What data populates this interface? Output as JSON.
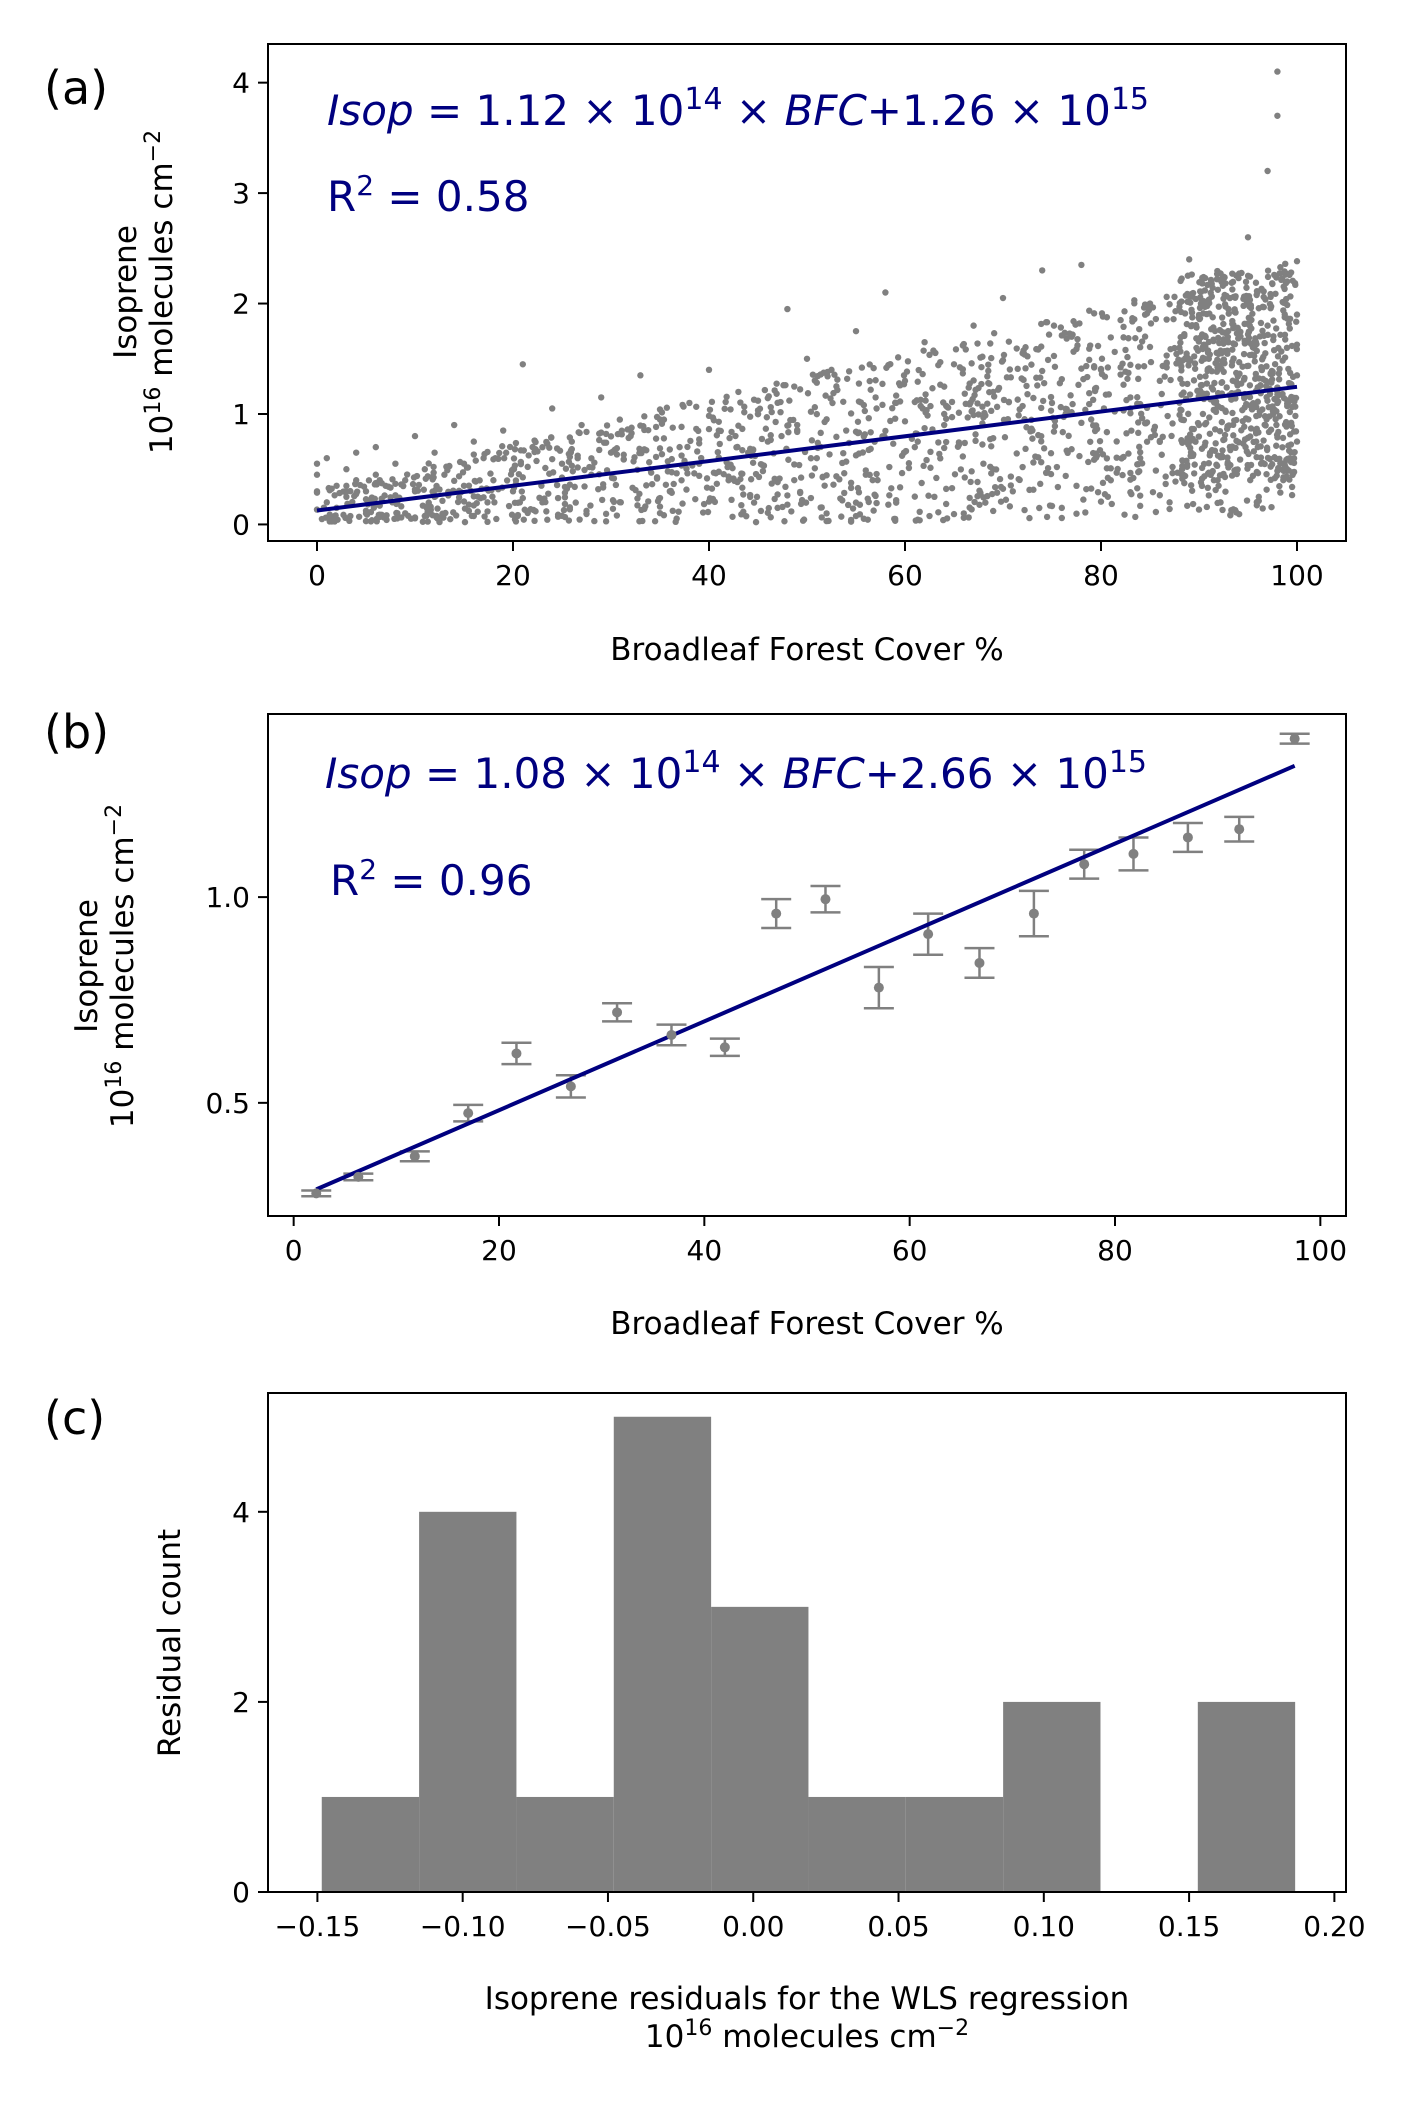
{
  "colors": {
    "points": "#808080",
    "fit_line": "#00007f",
    "bars": "#808080",
    "axes": "#000000"
  },
  "chart_data": [
    {
      "panel": "(a)",
      "type": "scatter",
      "xlabel": "Broadleaf Forest Cover %",
      "ylabel_line1": "Isoprene",
      "ylabel_line2_base": "10",
      "ylabel_line2_exp": "16",
      "ylabel_line2_mid": " molecules cm",
      "ylabel_line2_exp2": "−2",
      "xlim": [
        -5,
        105
      ],
      "ylim": [
        -0.15,
        4.35
      ],
      "xticks": [
        0,
        20,
        40,
        60,
        80,
        100
      ],
      "yticks": [
        0,
        1,
        2,
        3,
        4
      ],
      "equation": {
        "lhs": "Isop",
        "eq": " = 1.12 × 10",
        "exp1": "14",
        "mul": " × ",
        "var": "BFC",
        "plus": "+1.26 × 10",
        "exp2": "15"
      },
      "r2": {
        "label": "R",
        "sup": "2",
        "value": " = 0.58"
      },
      "fit": {
        "slope": 0.0112,
        "intercept": 0.126,
        "x_range": [
          0,
          100
        ]
      },
      "point_cloud_note": "",
      "points": [
        [
          0,
          0.45
        ],
        [
          0,
          0.3
        ],
        [
          0,
          0.55
        ],
        [
          1,
          0.2
        ],
        [
          1,
          0.6
        ],
        [
          2,
          0.35
        ],
        [
          2,
          0.15
        ],
        [
          3,
          0.5
        ],
        [
          3,
          0.25
        ],
        [
          4,
          0.4
        ],
        [
          4,
          0.65
        ],
        [
          5,
          0.3
        ],
        [
          5,
          0.1
        ],
        [
          6,
          0.45
        ],
        [
          6,
          0.7
        ],
        [
          7,
          0.35
        ],
        [
          8,
          0.2
        ],
        [
          8,
          0.55
        ],
        [
          9,
          0.4
        ],
        [
          10,
          0.3
        ],
        [
          10,
          0.8
        ],
        [
          11,
          0.5
        ],
        [
          12,
          0.65
        ],
        [
          12,
          0.25
        ],
        [
          13,
          0.45
        ],
        [
          14,
          0.9
        ],
        [
          15,
          0.55
        ],
        [
          15,
          0.35
        ],
        [
          16,
          0.75
        ],
        [
          17,
          0.6
        ],
        [
          18,
          0.4
        ],
        [
          19,
          0.85
        ],
        [
          20,
          0.5
        ],
        [
          20,
          0.3
        ],
        [
          21,
          1.45
        ],
        [
          22,
          0.7
        ],
        [
          23,
          0.2
        ],
        [
          24,
          1.05
        ],
        [
          25,
          0.55
        ],
        [
          26,
          0.75
        ],
        [
          27,
          0.9
        ],
        [
          28,
          0.45
        ],
        [
          29,
          1.15
        ],
        [
          30,
          0.65
        ],
        [
          31,
          0.2
        ],
        [
          32,
          0.8
        ],
        [
          33,
          1.35
        ],
        [
          34,
          0.5
        ],
        [
          35,
          0.95
        ],
        [
          36,
          0.3
        ],
        [
          37,
          0.7
        ],
        [
          38,
          1.1
        ],
        [
          39,
          0.55
        ],
        [
          40,
          1.4
        ],
        [
          41,
          0.85
        ],
        [
          42,
          0.4
        ],
        [
          43,
          1.2
        ],
        [
          44,
          0.65
        ],
        [
          45,
          1.0
        ],
        [
          46,
          0.75
        ],
        [
          47,
          0.15
        ],
        [
          48,
          1.95
        ],
        [
          49,
          0.9
        ],
        [
          50,
          1.5
        ],
        [
          51,
          0.6
        ],
        [
          52,
          0.1
        ],
        [
          53,
          1.25
        ],
        [
          54,
          0.85
        ],
        [
          55,
          1.75
        ],
        [
          56,
          0.45
        ],
        [
          57,
          1.15
        ],
        [
          58,
          2.1
        ],
        [
          59,
          0.05
        ],
        [
          60,
          1.3
        ],
        [
          61,
          0.7
        ],
        [
          62,
          1.65
        ],
        [
          63,
          0.25
        ],
        [
          64,
          1.0
        ],
        [
          65,
          1.45
        ],
        [
          66,
          0.1
        ],
        [
          67,
          1.8
        ],
        [
          68,
          0.55
        ],
        [
          69,
          1.2
        ],
        [
          70,
          2.05
        ],
        [
          71,
          0.3
        ],
        [
          72,
          1.55
        ],
        [
          73,
          0.85
        ],
        [
          74,
          2.3
        ],
        [
          75,
          1.1
        ],
        [
          76,
          0.15
        ],
        [
          77,
          1.7
        ],
        [
          78,
          2.35
        ],
        [
          79,
          0.95
        ],
        [
          80,
          1.4
        ],
        [
          81,
          0.4
        ],
        [
          82,
          1.85
        ],
        [
          83,
          1.15
        ],
        [
          84,
          0.6
        ],
        [
          85,
          2.0
        ],
        [
          86,
          1.3
        ],
        [
          87,
          0.2
        ],
        [
          88,
          1.6
        ],
        [
          89,
          2.4
        ],
        [
          90,
          0.9
        ],
        [
          91,
          1.5
        ],
        [
          92,
          0.35
        ],
        [
          93,
          1.95
        ],
        [
          94,
          1.2
        ],
        [
          95,
          2.6
        ],
        [
          96,
          0.7
        ],
        [
          97,
          3.2
        ],
        [
          97,
          1.8
        ],
        [
          98,
          4.1
        ],
        [
          98,
          3.7
        ],
        [
          98,
          1.1
        ],
        [
          99,
          2.2
        ],
        [
          99,
          0.5
        ],
        [
          100,
          1.9
        ],
        [
          100,
          1.35
        ],
        [
          100,
          0.75
        ]
      ]
    },
    {
      "panel": "(b)",
      "type": "scatter",
      "xlabel": "Broadleaf Forest Cover %",
      "ylabel_line1": "Isoprene",
      "ylabel_line2_base": "10",
      "ylabel_line2_exp": "16",
      "ylabel_line2_mid": " molecules cm",
      "ylabel_line2_exp2": "−2",
      "xlim": [
        -2.5,
        102.5
      ],
      "ylim": [
        0.225,
        1.445
      ],
      "xticks": [
        0,
        20,
        40,
        60,
        80,
        100
      ],
      "yticks": [
        0.5,
        1.0
      ],
      "ytick_labels": [
        "0.5",
        "1.0"
      ],
      "equation": {
        "lhs": "Isop",
        "eq": " = 1.08 × 10",
        "exp1": "14",
        "mul": " × ",
        "var": "BFC",
        "plus": "+2.66 × 10",
        "exp2": "15"
      },
      "r2": {
        "label": "R",
        "sup": "2",
        "value": " = 0.96"
      },
      "fit": {
        "slope": 0.0108,
        "intercept": 0.266,
        "x_range": [
          2.2,
          97.5
        ]
      },
      "points": [
        {
          "x": 2.2,
          "y": 0.28,
          "err": 0.007
        },
        {
          "x": 6.3,
          "y": 0.32,
          "err": 0.008
        },
        {
          "x": 11.8,
          "y": 0.37,
          "err": 0.012
        },
        {
          "x": 17.0,
          "y": 0.475,
          "err": 0.02
        },
        {
          "x": 21.7,
          "y": 0.62,
          "err": 0.026
        },
        {
          "x": 27.0,
          "y": 0.54,
          "err": 0.027
        },
        {
          "x": 31.5,
          "y": 0.72,
          "err": 0.022
        },
        {
          "x": 36.8,
          "y": 0.665,
          "err": 0.025
        },
        {
          "x": 42.0,
          "y": 0.635,
          "err": 0.021
        },
        {
          "x": 47.0,
          "y": 0.96,
          "err": 0.035
        },
        {
          "x": 51.8,
          "y": 0.995,
          "err": 0.032
        },
        {
          "x": 57.0,
          "y": 0.78,
          "err": 0.05
        },
        {
          "x": 61.8,
          "y": 0.91,
          "err": 0.05
        },
        {
          "x": 66.8,
          "y": 0.84,
          "err": 0.036
        },
        {
          "x": 72.1,
          "y": 0.96,
          "err": 0.055
        },
        {
          "x": 77.0,
          "y": 1.08,
          "err": 0.035
        },
        {
          "x": 81.8,
          "y": 1.105,
          "err": 0.04
        },
        {
          "x": 87.1,
          "y": 1.145,
          "err": 0.035
        },
        {
          "x": 92.1,
          "y": 1.165,
          "err": 0.03
        },
        {
          "x": 97.5,
          "y": 1.385,
          "err": 0.012
        }
      ]
    },
    {
      "panel": "(c)",
      "type": "bar",
      "xlabel_line1": "Isoprene residuals for the WLS regression",
      "xlabel_line2_base": "10",
      "xlabel_line2_exp": "16",
      "xlabel_line2_mid": " molecules cm",
      "xlabel_line2_exp2": "−2",
      "ylabel": "Residual count",
      "xlim": [
        -0.167,
        0.204
      ],
      "ylim": [
        0,
        5.25
      ],
      "xticks": [
        -0.15,
        -0.1,
        -0.05,
        0.0,
        0.05,
        0.1,
        0.15,
        0.2
      ],
      "xtick_labels": [
        "−0.15",
        "−0.10",
        "−0.05",
        "0.00",
        "0.05",
        "0.10",
        "0.15",
        "0.20"
      ],
      "yticks": [
        0,
        2,
        4
      ],
      "bin_edges": [
        -0.1485,
        -0.115,
        -0.0815,
        -0.048,
        -0.0145,
        0.019,
        0.0525,
        0.086,
        0.1195,
        0.153,
        0.1865
      ],
      "counts": [
        1,
        4,
        1,
        5,
        3,
        1,
        1,
        2,
        0,
        2
      ]
    }
  ]
}
